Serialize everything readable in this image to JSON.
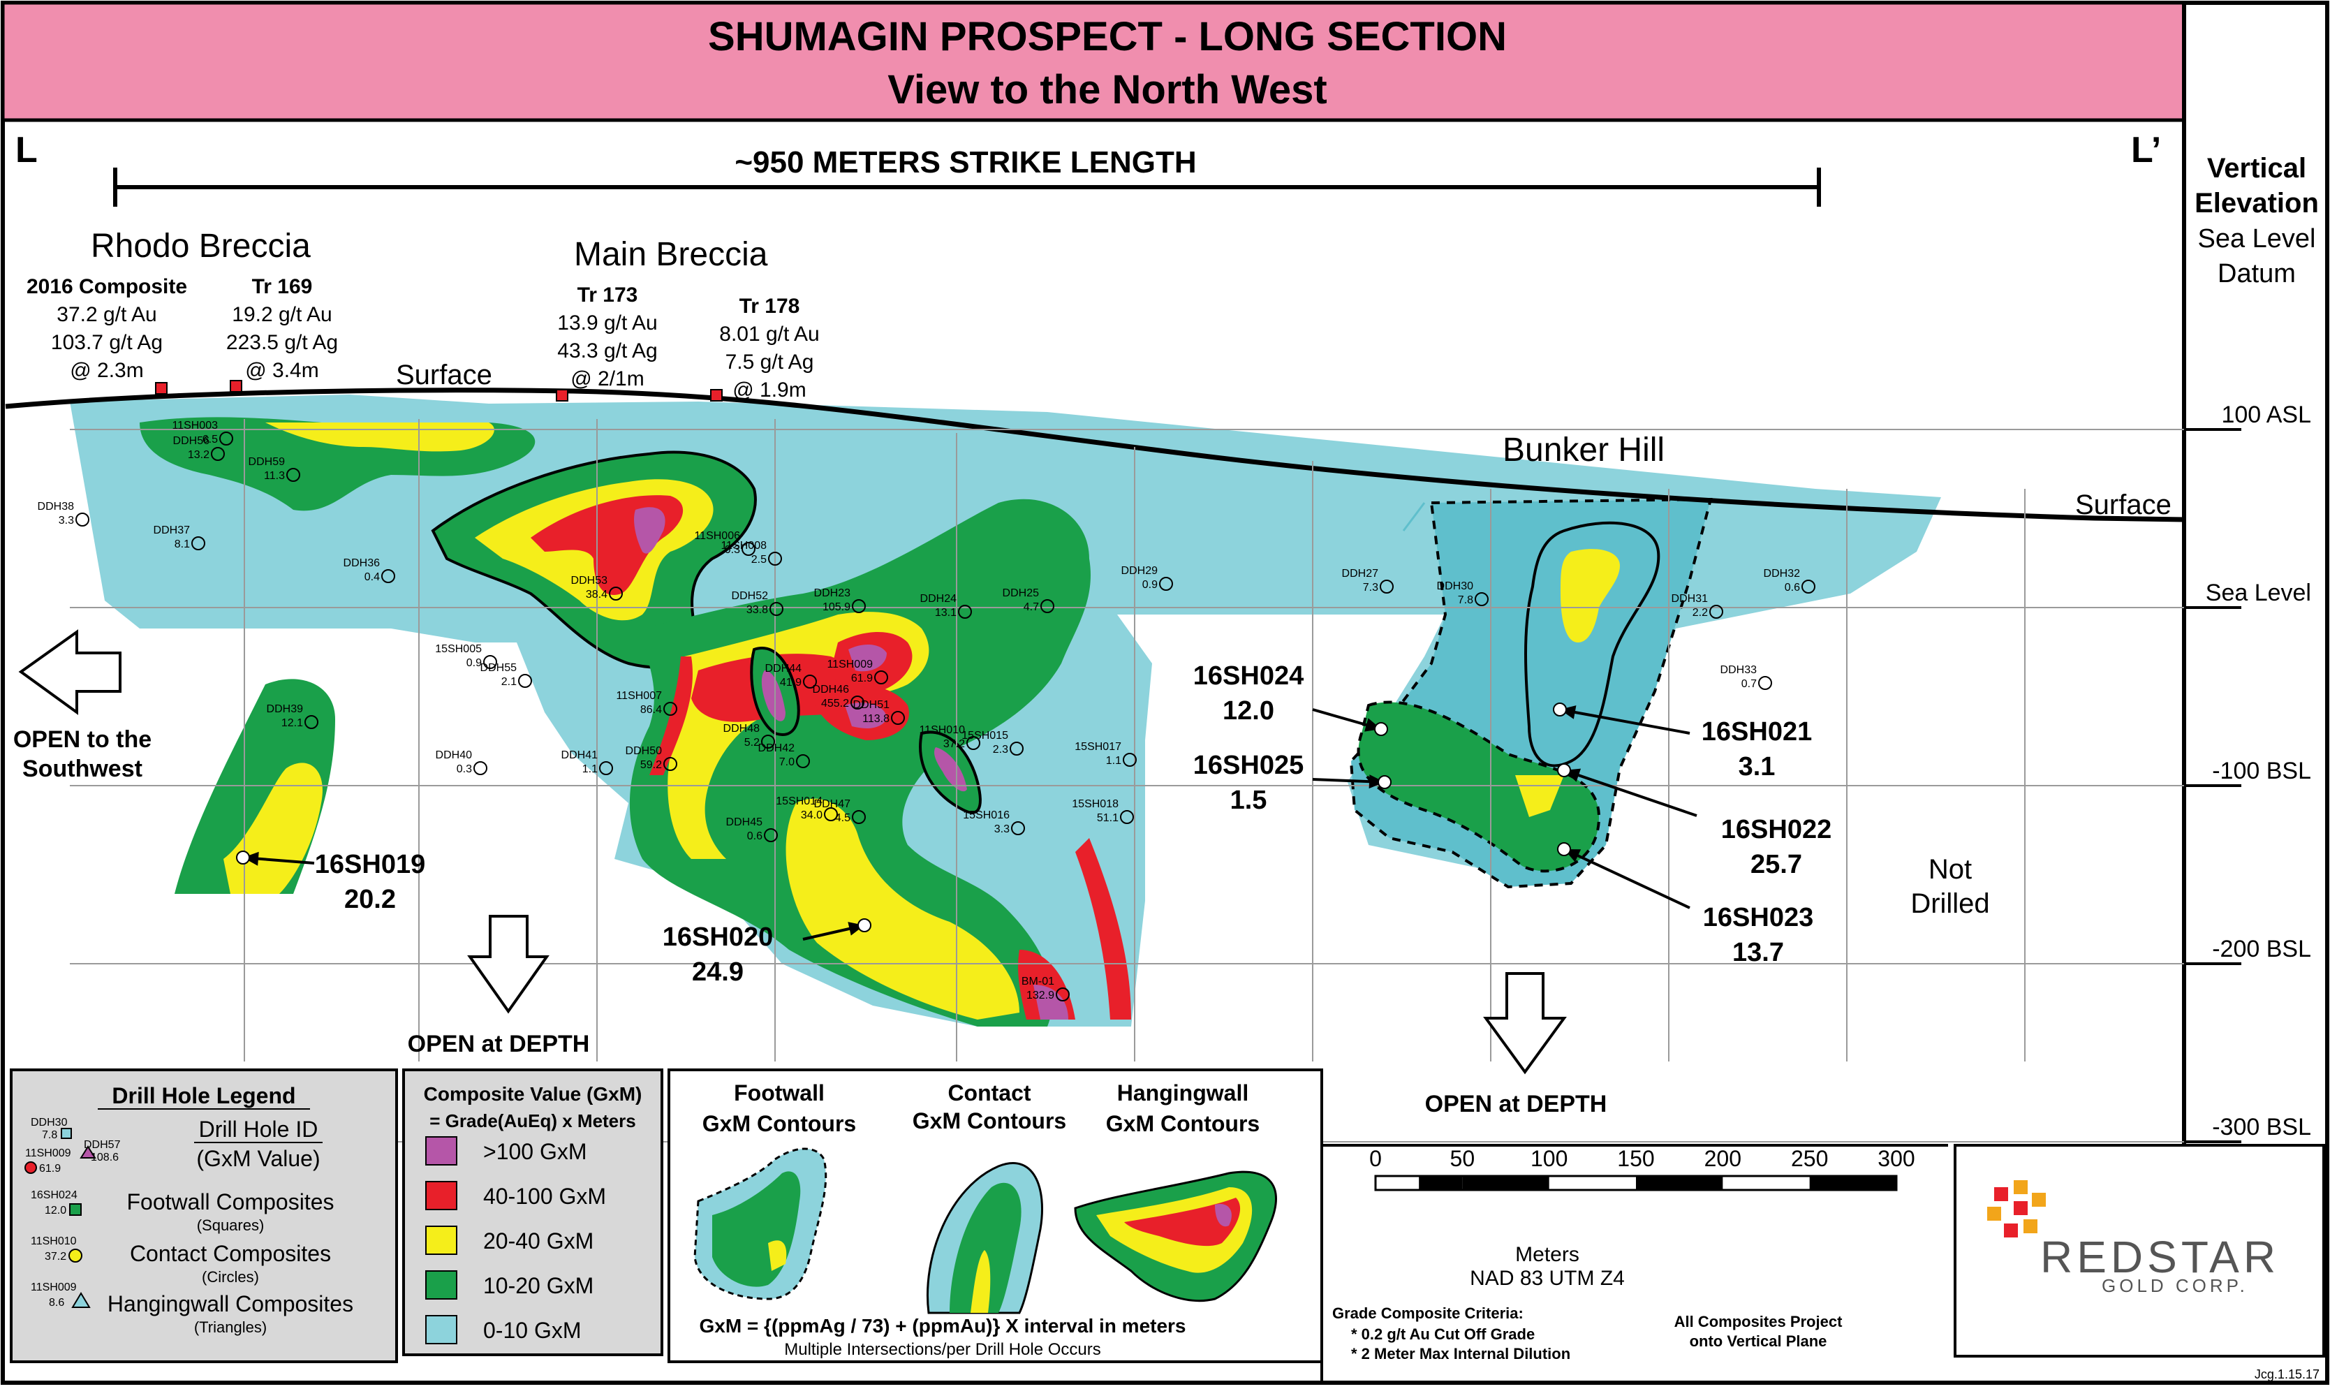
{
  "title": {
    "line1": "SHUMAGIN PROSPECT - LONG SECTION",
    "line2": "View to the North West"
  },
  "section_ends": {
    "left": "L",
    "right": "L’"
  },
  "strike_length": "~950 METERS STRIKE LENGTH",
  "vertical_panel": {
    "heading1": "Vertical",
    "heading2": "Elevation",
    "heading3": "Sea Level",
    "heading4": "Datum",
    "levels": [
      "100 ASL",
      "Sea Level",
      "-100 BSL",
      "-200 BSL",
      "-300 BSL"
    ]
  },
  "areas": {
    "rhodo": "Rhodo Breccia",
    "main": "Main Breccia",
    "bunker": "Bunker Hill"
  },
  "surface_labels": [
    "Surface",
    "Surface"
  ],
  "trenches": [
    {
      "name": "2016 Composite",
      "au": "37.2 g/t Au",
      "ag": "103.7 g/t Ag",
      "width": "@ 2.3m"
    },
    {
      "name": "Tr 169",
      "au": "19.2 g/t Au",
      "ag": "223.5 g/t Ag",
      "width": "@ 3.4m"
    },
    {
      "name": "Tr 173",
      "au": "13.9 g/t Au",
      "ag": "43.3 g/t Ag",
      "width": "@ 2/1m"
    },
    {
      "name": "Tr 178",
      "au": "8.01 g/t Au",
      "ag": "7.5 g/t Ag",
      "width": "@ 1.9m"
    }
  ],
  "callouts": [
    {
      "id": "16SH019",
      "value": "20.2"
    },
    {
      "id": "16SH020",
      "value": "24.9"
    },
    {
      "id": "16SH024",
      "value": "12.0"
    },
    {
      "id": "16SH025",
      "value": "1.5"
    },
    {
      "id": "16SH021",
      "value": "3.1"
    },
    {
      "id": "16SH022",
      "value": "25.7"
    },
    {
      "id": "16SH023",
      "value": "13.7"
    }
  ],
  "open_labels": {
    "southwest1": "OPEN to the",
    "southwest2": "Southwest",
    "depth1": "OPEN at DEPTH",
    "depth2": "OPEN at DEPTH"
  },
  "not_drilled": {
    "line1": "Not",
    "line2": "Drilled"
  },
  "drill_holes": [
    {
      "id": "11SH003",
      "v": "6.5"
    },
    {
      "id": "DDH56",
      "v": "13.2"
    },
    {
      "id": "DDH59",
      "v": "11.3"
    },
    {
      "id": "DDH38",
      "v": "3.3"
    },
    {
      "id": "DDH37",
      "v": "8.1"
    },
    {
      "id": "DDH36",
      "v": "0.4"
    },
    {
      "id": "15SH005",
      "v": "0.9"
    },
    {
      "id": "DDH55",
      "v": "2.1"
    },
    {
      "id": "DDH39",
      "v": "12.1"
    },
    {
      "id": "DDH40",
      "v": "0.3"
    },
    {
      "id": "DDH41",
      "v": "1.1"
    },
    {
      "id": "DDH53",
      "v": "38.4"
    },
    {
      "id": "DDH50",
      "v": "59.2"
    },
    {
      "id": "11SH007",
      "v": "86.4"
    },
    {
      "id": "11SH006",
      "v": "0.3"
    },
    {
      "id": "11SH008",
      "v": "2.5"
    },
    {
      "id": "DDH52",
      "v": "33.8"
    },
    {
      "id": "DDH23",
      "v": "105.9"
    },
    {
      "id": "DDH24",
      "v": "13.1"
    },
    {
      "id": "DDH44",
      "v": "41.9"
    },
    {
      "id": "11SH009",
      "v": "61.9"
    },
    {
      "id": "DDH46",
      "v": "455.2"
    },
    {
      "id": "DDH51",
      "v": "113.8"
    },
    {
      "id": "DDH48",
      "v": "5.2"
    },
    {
      "id": "DDH42",
      "v": "7.0"
    },
    {
      "id": "11SH010",
      "v": "37.2"
    },
    {
      "id": "15SH015",
      "v": "2.3"
    },
    {
      "id": "15SH017",
      "v": "1.1"
    },
    {
      "id": "15SH014",
      "v": "34.0"
    },
    {
      "id": "DDH47",
      "v": "4.5"
    },
    {
      "id": "DDH45",
      "v": "0.6"
    },
    {
      "id": "15SH016",
      "v": "3.3"
    },
    {
      "id": "15SH018",
      "v": "51.1"
    },
    {
      "id": "DDH25",
      "v": "4.7"
    },
    {
      "id": "DDH29",
      "v": "0.9"
    },
    {
      "id": "BM-01",
      "v": "132.9"
    },
    {
      "id": "DDH27",
      "v": "7.3"
    },
    {
      "id": "DDH30",
      "v": "7.8"
    },
    {
      "id": "DDH31",
      "v": "2.2"
    },
    {
      "id": "DDH32",
      "v": "0.6"
    },
    {
      "id": "DDH33",
      "v": "0.7"
    }
  ],
  "legend_drill": {
    "title": "Drill Hole Legend",
    "id_label": "Drill Hole ID",
    "value_label": "(GxM Value)",
    "footwall": "Footwall Composites",
    "footwall_sub": "(Squares)",
    "contact": "Contact Composites",
    "contact_sub": "(Circles)",
    "hanging": "Hangingwall Composites",
    "hanging_sub": "(Triangles)",
    "ex_ddh30": "DDH30",
    "ex_ddh30_v": "7.8",
    "ex_ddh57": "DDH57",
    "ex_11sh009": "11SH009",
    "ex_11sh009_v": "61.9",
    "ex_108": "108.6",
    "ex_16sh024": "16SH024",
    "ex_16sh024_v": "12.0",
    "ex_11sh010": "11SH010",
    "ex_11sh010_v": "37.2",
    "ex_11sh009b": "11SH009",
    "ex_11sh009b_v": "8.6"
  },
  "legend_value": {
    "title": "Composite Value (GxM)",
    "subtitle": "= Grade(AuEq) x Meters",
    "classes": [
      {
        "label": ">100 GxM",
        "color": "#B556A8"
      },
      {
        "label": "40-100 GxM",
        "color": "#E8202A"
      },
      {
        "label": "20-40 GxM",
        "color": "#F5EE1A"
      },
      {
        "label": "10-20 GxM",
        "color": "#1AA04A"
      },
      {
        "label": "0-10 GxM",
        "color": "#8DD3DC"
      }
    ]
  },
  "legend_contours": {
    "footwall1": "Footwall",
    "footwall2": "GxM Contours",
    "contact1": "Contact",
    "contact2": "GxM Contours",
    "hanging1": "Hangingwall",
    "hanging2": "GxM Contours",
    "formula": "GxM = {(ppmAg / 73) + (ppmAu)} X interval in meters",
    "note": "Multiple Intersections/per Drill Hole Occurs"
  },
  "scale": {
    "ticks": [
      "0",
      "50",
      "100",
      "150",
      "200",
      "250",
      "300"
    ],
    "unit": "Meters",
    "datum": "NAD 83 UTM Z4"
  },
  "criteria": {
    "title": "Grade Composite Criteria:",
    "line1": "* 0.2 g/t Au Cut Off Grade",
    "line2": "* 2 Meter Max Internal Dilution",
    "note1": "All Composites Project",
    "note2": "onto Vertical Plane"
  },
  "logo": {
    "word1": "REDSTAR",
    "word2": "GOLD CORP."
  },
  "credit": "Jcg.1.15.17",
  "colors": {
    "title_bg": "#F08EAE",
    "cyan": "#8DD3DC",
    "cyan_dark": "#5FBFCC",
    "green": "#1AA04A",
    "yellow": "#F5EE1A",
    "red": "#E8202A",
    "purple": "#B556A8",
    "trench": "#E8202A"
  }
}
